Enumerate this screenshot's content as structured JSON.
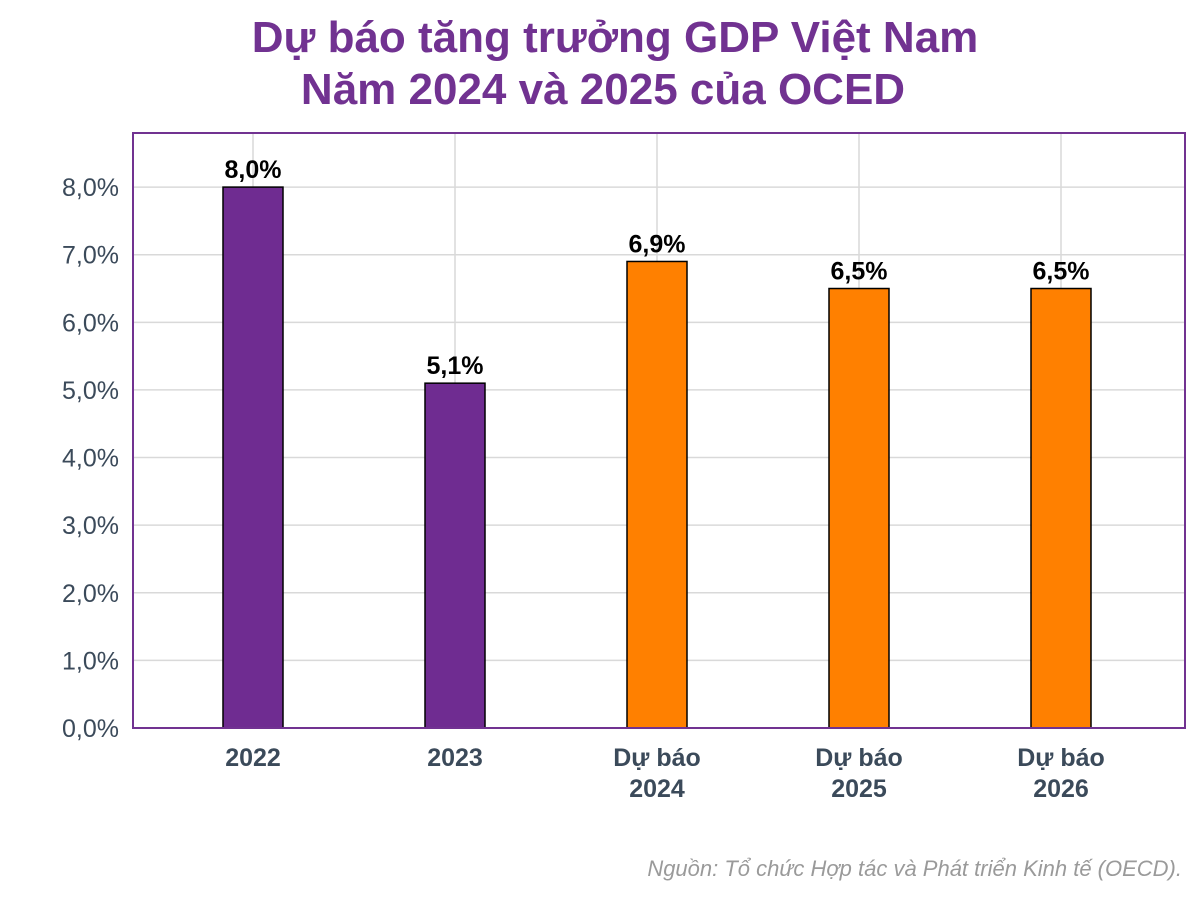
{
  "chart_data": {
    "type": "bar",
    "title_line1": "Dự báo tăng trưởng GDP Việt Nam",
    "title_line2": "Năm 2024 và 2025 của OCED",
    "categories": [
      [
        "2022"
      ],
      [
        "2023"
      ],
      [
        "Dự báo",
        "2024"
      ],
      [
        "Dự báo",
        "2025"
      ],
      [
        "Dự báo",
        "2026"
      ]
    ],
    "values": [
      8.0,
      5.1,
      6.9,
      6.5,
      6.5
    ],
    "value_labels": [
      "8,0%",
      "5,1%",
      "6,9%",
      "6,5%",
      "6,5%"
    ],
    "bar_colors": [
      "#6f2c91",
      "#6f2c91",
      "#ff8000",
      "#ff8000",
      "#ff8000"
    ],
    "y_ticks": [
      0,
      1,
      2,
      3,
      4,
      5,
      6,
      7,
      8
    ],
    "y_tick_labels": [
      "0,0%",
      "1,0%",
      "2,0%",
      "3,0%",
      "4,0%",
      "5,0%",
      "6,0%",
      "7,0%",
      "8,0%"
    ],
    "ylim": [
      0,
      8.8
    ],
    "grid": true,
    "xlabel": "",
    "ylabel": ""
  },
  "source": "Nguồn: Tổ chức Hợp tác và Phát triển Kinh tế (OECD).",
  "colors": {
    "title": "#713291",
    "frame": "#713291",
    "axis_text": "#3b4a5a",
    "grid": "#d9d9d9"
  }
}
